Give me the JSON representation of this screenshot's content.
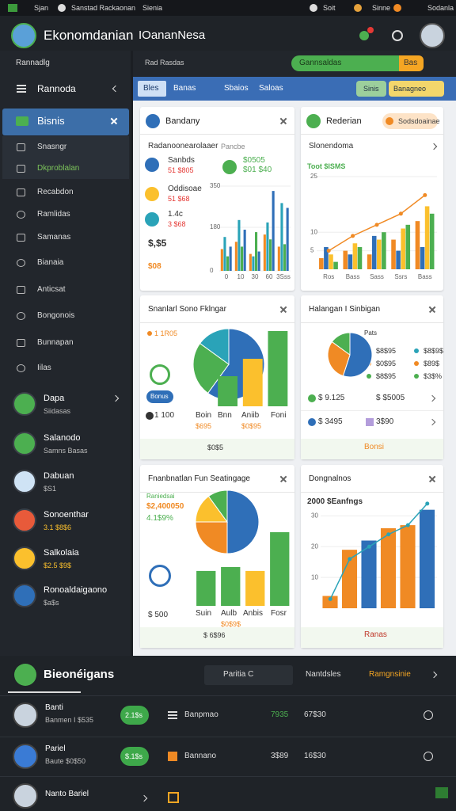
{
  "status_bar": {
    "left": [
      "Sjan",
      "Sanstad Rackaonan",
      "Sienia"
    ],
    "right": [
      "Soit",
      "Sinne",
      "Sodanla"
    ]
  },
  "header": {
    "title": "Ekonomdanian",
    "subtitle": "IOananNesa"
  },
  "sidebar": {
    "section": "Rannadlg",
    "menu": "Rannoda",
    "active": "Bisnis",
    "sub": [
      "Snasngr",
      "Dkproblalan"
    ],
    "items": [
      "Recabdon",
      "Ramlidas",
      "Samanas",
      "Bianaia",
      "Anticsat",
      "Bongonois",
      "Bunnapan",
      "Iilas"
    ],
    "profiles": [
      {
        "name": "Dapa",
        "sub": "Siidasas"
      },
      {
        "name": "Salanodo",
        "sub": "Samns Basas"
      },
      {
        "name": "Dabuan",
        "sub": "$S1"
      },
      {
        "name": "Sonoenthar",
        "sub": "3.1 $8$6"
      },
      {
        "name": "Salkolaia",
        "sub": "$2.5 $9$"
      },
      {
        "name": "Ronoaldaigaono",
        "sub": "$a$s"
      }
    ]
  },
  "toolbar": {
    "label": "Rad Rasdas",
    "progress_label": "Gannsaldas",
    "button": "Bas"
  },
  "tabs": [
    "Bles",
    "Banas",
    "Sbaios",
    "Saloas"
  ],
  "tab_buttons": [
    "Sinis",
    "Banagneo"
  ],
  "cards": [
    {
      "title": "Bandany",
      "texts": [
        "Radanoonearolaaer",
        "Pancbe",
        "Sanbds",
        "51 $805",
        "Oddisoae",
        "51 $68",
        "1.4c",
        "3 $68",
        "$0505",
        "$01 $40",
        "$,$5",
        "$08"
      ],
      "charts": [
        {
          "type": "bar",
          "ylim": [
            0,
            350
          ],
          "yticks": [
            0,
            180,
            350
          ],
          "categories": [
            "0",
            "10",
            "30",
            "60",
            "3Sss"
          ],
          "series": [
            {
              "color": "#f08a24",
              "values": [
                90,
                120,
                70,
                150,
                100
              ]
            },
            {
              "color": "#2aa3b8",
              "values": [
                140,
                210,
                60,
                200,
                280
              ]
            },
            {
              "color": "#4caf50",
              "values": [
                60,
                100,
                160,
                130,
                110
              ]
            },
            {
              "color": "#2f6fb8",
              "values": [
                100,
                170,
                80,
                330,
                260
              ]
            }
          ]
        }
      ]
    },
    {
      "title": "Rederian",
      "button": "Sodsdoainae",
      "texts": [
        "Slonendoma",
        "Toot $ISMS"
      ],
      "charts": [
        {
          "type": "bar",
          "ylim": [
            0,
            25
          ],
          "yticks": [
            5,
            10,
            25
          ],
          "categories": [
            "Ros",
            "Bass",
            "Sass",
            "Ssrs",
            "Bass"
          ],
          "series": [
            {
              "color": "#f08a24",
              "values": [
                3,
                5,
                4,
                8,
                13
              ]
            },
            {
              "color": "#2f6fb8",
              "values": [
                6,
                4,
                9,
                5,
                6
              ]
            },
            {
              "color": "#fbc02d",
              "values": [
                4,
                7,
                8,
                11,
                17
              ]
            },
            {
              "color": "#4caf50",
              "values": [
                2,
                6,
                10,
                12,
                15
              ]
            }
          ],
          "line": {
            "color": "#f08a24",
            "values": [
              5,
              9,
              12,
              15,
              20
            ]
          }
        }
      ]
    },
    {
      "title": "Snanlarl Sono Fklngar",
      "button": "Bonus",
      "texts": [
        "1 1R05",
        "1 100",
        "Boin",
        "Bnn",
        "Aniib",
        "Foni",
        "$695",
        "$0$95",
        "$0$5"
      ],
      "charts": [
        {
          "type": "pie",
          "values": [
            60,
            25,
            15
          ],
          "colors": [
            "#2f6fb8",
            "#4caf50",
            "#2aa3b8"
          ]
        },
        {
          "type": "bar",
          "ylim": [
            0,
            100
          ],
          "series": [
            {
              "colors": [
                "#4caf50",
                "#fbc02d",
                "#4caf50"
              ],
              "values": [
                38,
                60,
                95
              ]
            }
          ]
        }
      ]
    },
    {
      "title": "Halangan I Sinbigan",
      "texts": [
        "Pats",
        "$8$95",
        "$8$9$",
        "$0$95",
        "$89$",
        "$8$95",
        "$3$%",
        "$ 9.125",
        "$ $5005",
        "$ 3495",
        "3$90",
        "Bonsi"
      ],
      "charts": [
        {
          "type": "pie",
          "values": [
            55,
            30,
            15
          ],
          "colors": [
            "#2f6fb8",
            "#f08a24",
            "#4caf50"
          ]
        }
      ]
    },
    {
      "title": "Fnanbnatlan Fun Seatingage",
      "texts": [
        "Raniedsai",
        "$2,400050",
        "4.1$9%",
        "$ 500",
        "Suin",
        "Aulb",
        "Anbis",
        "Fosr",
        "$0$9$",
        "$ 6$96"
      ],
      "charts": [
        {
          "type": "pie",
          "values": [
            50,
            25,
            15,
            10
          ],
          "colors": [
            "#2f6fb8",
            "#f08a24",
            "#fbc02d",
            "#4caf50"
          ]
        },
        {
          "type": "bar",
          "ylim": [
            0,
            100
          ],
          "series": [
            {
              "colors": [
                "#4caf50",
                "#4caf50",
                "#fbc02d",
                "#4caf50"
              ],
              "values": [
                45,
                50,
                45,
                95
              ]
            }
          ]
        }
      ]
    },
    {
      "title": "Dongnalnos",
      "texts": [
        "2000 $Eanfngs",
        "Ranas"
      ],
      "charts": [
        {
          "type": "bar",
          "ylim": [
            0,
            35
          ],
          "yticks": [
            10,
            20,
            30
          ],
          "series": [
            {
              "colors": [
                "#f08a24",
                "#f08a24",
                "#2f6fb8",
                "#f08a24",
                "#f08a24",
                "#2f6fb8"
              ],
              "values": [
                4,
                19,
                22,
                26,
                27,
                32
              ]
            }
          ],
          "line": {
            "color": "#2aa3b8",
            "values": [
              3,
              16,
              20,
              24,
              27,
              34
            ]
          }
        }
      ]
    }
  ],
  "bottom": {
    "title": "Bieonéigans",
    "search": "Paritia C",
    "tabs": [
      "Nantdsles",
      "Ramgnsinie"
    ],
    "rows": [
      {
        "name": "Banti",
        "sub": "Banmen I $535",
        "badge": "2.1$s",
        "label": "Banpmao",
        "v1": "7935",
        "v2": "67$30"
      },
      {
        "name": "Pariel",
        "sub": "Baute $0$50",
        "badge": "$.1$s",
        "label": "Bannano",
        "v1": "3$89",
        "v2": "16$30"
      },
      {
        "name": "Nanto Bariel"
      }
    ]
  }
}
